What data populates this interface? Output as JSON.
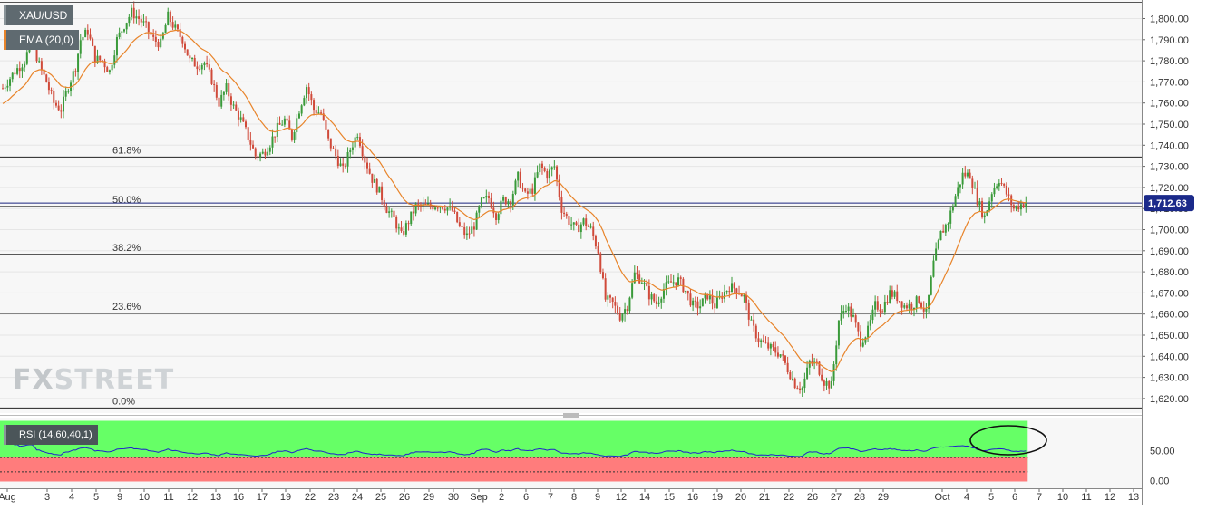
{
  "chart_data": {
    "type": "candlestick",
    "symbol": "XAU/USD",
    "indicators": {
      "ema": "EMA (20,0)",
      "rsi": "RSI (14,60,40,1)"
    },
    "price_axis": {
      "ticks": [
        "1,800.00",
        "1,790.00",
        "1,780.00",
        "1,770.00",
        "1,760.00",
        "1,750.00",
        "1,740.00",
        "1,730.00",
        "1,720.00",
        "1,710.00",
        "1,700.00",
        "1,690.00",
        "1,680.00",
        "1,670.00",
        "1,660.00",
        "1,650.00",
        "1,640.00",
        "1,630.00",
        "1,620.00"
      ],
      "range": [
        1615,
        1807
      ]
    },
    "last_price": "1,712.63",
    "fibonacci": [
      {
        "label": "61.8%",
        "price": 1734.4
      },
      {
        "label": "50.0%",
        "price": 1711.0
      },
      {
        "label": "38.2%",
        "price": 1688.3
      },
      {
        "label": "23.6%",
        "price": 1660.3
      },
      {
        "label": "0.0%",
        "price": 1615.5
      }
    ],
    "rsi_axis": {
      "ticks": [
        "50.00",
        "0.00"
      ],
      "range": [
        0,
        100
      ],
      "upper": 60,
      "lower": 40
    },
    "x_labels": [
      "Aug",
      "3",
      "4",
      "5",
      "9",
      "10",
      "11",
      "12",
      "13",
      "16",
      "17",
      "19",
      "22",
      "23",
      "24",
      "25",
      "26",
      "29",
      "30",
      "Sep",
      "2",
      "6",
      "7",
      "8",
      "9",
      "12",
      "14",
      "15",
      "16",
      "19",
      "20",
      "21",
      "22",
      "26",
      "27",
      "28",
      "29",
      "Oct",
      "4",
      "5",
      "6",
      "7",
      "10",
      "11",
      "12",
      "13"
    ],
    "watermark": "FXSTREET",
    "colors": {
      "up": "#3a9a3a",
      "down": "#d04a3a",
      "ema": "#e8842a",
      "rsi": "#2222cc",
      "rsi_up_zone": "#66ff66",
      "rsi_down_zone": "#ff7c7c"
    },
    "price_path": [
      [
        0,
        1767
      ],
      [
        5,
        1775
      ],
      [
        9,
        1780
      ],
      [
        12,
        1790
      ],
      [
        15,
        1778
      ],
      [
        18,
        1770
      ],
      [
        21,
        1760
      ],
      [
        24,
        1757
      ],
      [
        27,
        1768
      ],
      [
        30,
        1777
      ],
      [
        32,
        1790
      ],
      [
        35,
        1794
      ],
      [
        38,
        1781
      ],
      [
        41,
        1780
      ],
      [
        44,
        1775
      ],
      [
        47,
        1790
      ],
      [
        50,
        1797
      ],
      [
        53,
        1803
      ],
      [
        56,
        1800
      ],
      [
        59,
        1796
      ],
      [
        62,
        1790
      ],
      [
        65,
        1788
      ],
      [
        68,
        1801
      ],
      [
        71,
        1795
      ],
      [
        74,
        1790
      ],
      [
        77,
        1780
      ],
      [
        80,
        1778
      ],
      [
        83,
        1779
      ],
      [
        86,
        1771
      ],
      [
        89,
        1760
      ],
      [
        92,
        1767
      ],
      [
        95,
        1758
      ],
      [
        98,
        1752
      ],
      [
        101,
        1744
      ],
      [
        104,
        1735
      ],
      [
        107,
        1736
      ],
      [
        110,
        1741
      ],
      [
        113,
        1748
      ],
      [
        116,
        1752
      ],
      [
        119,
        1744
      ],
      [
        122,
        1757
      ],
      [
        125,
        1768
      ],
      [
        128,
        1757
      ],
      [
        131,
        1755
      ],
      [
        134,
        1742
      ],
      [
        137,
        1735
      ],
      [
        140,
        1728
      ],
      [
        143,
        1738
      ],
      [
        146,
        1746
      ],
      [
        149,
        1733
      ],
      [
        152,
        1724
      ],
      [
        155,
        1718
      ],
      [
        158,
        1710
      ],
      [
        161,
        1705
      ],
      [
        164,
        1697
      ],
      [
        167,
        1704
      ],
      [
        170,
        1711
      ],
      [
        173,
        1711
      ],
      [
        176,
        1711
      ],
      [
        179,
        1712
      ],
      [
        182,
        1711
      ],
      [
        185,
        1709
      ],
      [
        188,
        1701
      ],
      [
        191,
        1697
      ],
      [
        194,
        1702
      ],
      [
        197,
        1713
      ],
      [
        200,
        1715
      ],
      [
        203,
        1707
      ],
      [
        206,
        1714
      ],
      [
        209,
        1714
      ],
      [
        212,
        1725
      ],
      [
        215,
        1716
      ],
      [
        218,
        1719
      ],
      [
        221,
        1730
      ],
      [
        224,
        1726
      ],
      [
        227,
        1730
      ],
      [
        230,
        1710
      ],
      [
        233,
        1704
      ],
      [
        236,
        1700
      ],
      [
        239,
        1704
      ],
      [
        242,
        1700
      ],
      [
        245,
        1690
      ],
      [
        248,
        1667
      ],
      [
        251,
        1665
      ],
      [
        254,
        1659
      ],
      [
        257,
        1664
      ],
      [
        260,
        1679
      ],
      [
        263,
        1676
      ],
      [
        266,
        1669
      ],
      [
        269,
        1665
      ],
      [
        272,
        1672
      ],
      [
        275,
        1675
      ],
      [
        278,
        1676
      ],
      [
        281,
        1671
      ],
      [
        284,
        1664
      ],
      [
        287,
        1664
      ],
      [
        290,
        1669
      ],
      [
        293,
        1664
      ],
      [
        296,
        1669
      ],
      [
        299,
        1673
      ],
      [
        302,
        1672
      ],
      [
        305,
        1668
      ],
      [
        308,
        1655
      ],
      [
        311,
        1648
      ],
      [
        314,
        1645
      ],
      [
        317,
        1643
      ],
      [
        320,
        1641
      ],
      [
        323,
        1634
      ],
      [
        326,
        1627
      ],
      [
        329,
        1625
      ],
      [
        332,
        1637
      ],
      [
        335,
        1636
      ],
      [
        338,
        1628
      ],
      [
        341,
        1626
      ],
      [
        344,
        1657
      ],
      [
        347,
        1664
      ],
      [
        350,
        1658
      ],
      [
        353,
        1647
      ],
      [
        356,
        1652
      ],
      [
        359,
        1664
      ],
      [
        362,
        1663
      ],
      [
        365,
        1670
      ],
      [
        368,
        1668
      ],
      [
        371,
        1664
      ],
      [
        374,
        1664
      ],
      [
        377,
        1667
      ],
      [
        380,
        1660
      ],
      [
        383,
        1684
      ],
      [
        386,
        1698
      ],
      [
        389,
        1704
      ],
      [
        392,
        1716
      ],
      [
        395,
        1726
      ],
      [
        398,
        1726
      ],
      [
        401,
        1714
      ],
      [
        404,
        1706
      ],
      [
        407,
        1718
      ],
      [
        410,
        1724
      ],
      [
        413,
        1717
      ],
      [
        416,
        1710
      ],
      [
        419,
        1712
      ],
      [
        421,
        1712.6
      ]
    ]
  }
}
